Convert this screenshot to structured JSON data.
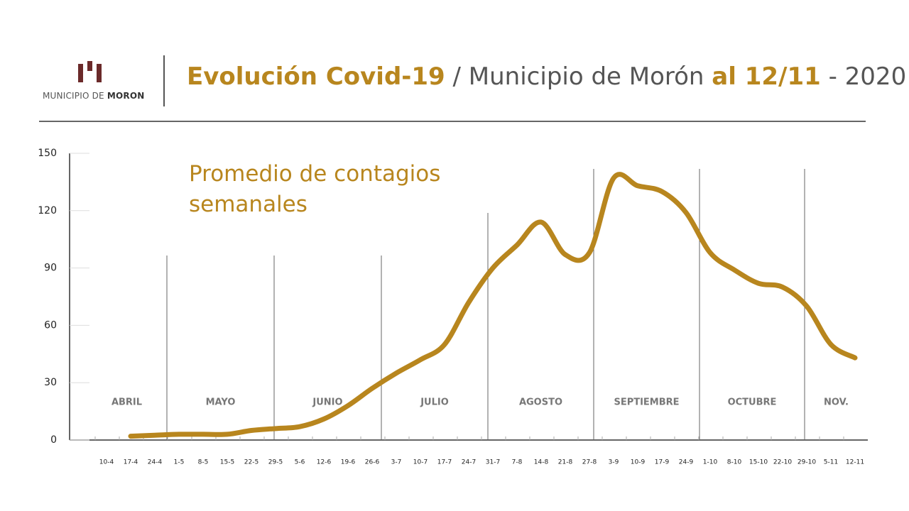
{
  "logo": {
    "line1": "MUNICIPIO DE",
    "line2": "MORON"
  },
  "chart_data": {
    "type": "line",
    "title": [
      "Evolución Covid-19",
      "/ Municipio de Morón",
      "al 12/11",
      "- 2020"
    ],
    "subtitle": "Promedio de contagios semanales",
    "categories": [
      "10-4",
      "17-4",
      "24-4",
      "1-5",
      "8-5",
      "15-5",
      "22-5",
      "29-5",
      "5-6",
      "12-6",
      "19-6",
      "26-6",
      "3-7",
      "10-7",
      "17-7",
      "24-7",
      "31-7",
      "7-8",
      "14-8",
      "21-8",
      "27-8",
      "3-9",
      "10-9",
      "17-9",
      "24-9",
      "1-10",
      "8-10",
      "15-10",
      "22-10",
      "29-10",
      "5-11",
      "12-11"
    ],
    "series": [
      {
        "name": null,
        "color": "#b8861e",
        "values": [
          null,
          2,
          2.5,
          3,
          3,
          3,
          5,
          6,
          7,
          11,
          18,
          27,
          35,
          42,
          50,
          72,
          90,
          102,
          114,
          97,
          98,
          137,
          133,
          130,
          119,
          98,
          89,
          82,
          80,
          70,
          50,
          43
        ]
      }
    ],
    "months": [
      "ABRIL",
      "MAYO",
      "JUNIO",
      "JULIO",
      "AGOSTO",
      "SEPTIEMBRE",
      "OCTUBRE",
      "NOV."
    ],
    "ylim": [
      0,
      150
    ],
    "yticks": [
      0,
      30,
      60,
      90,
      120,
      150
    ]
  }
}
